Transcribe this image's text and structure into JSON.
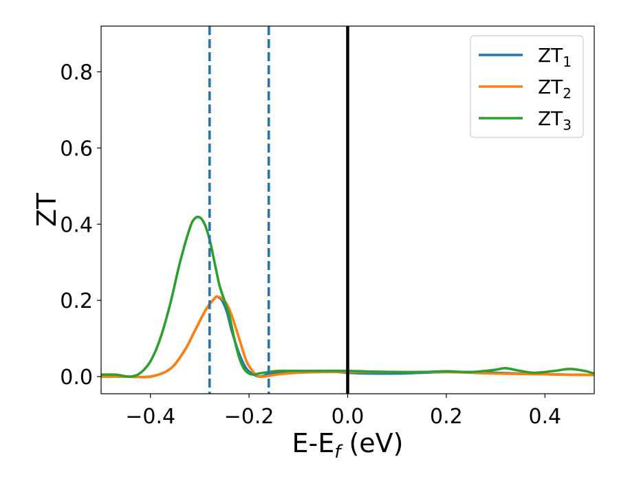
{
  "chart_data": {
    "type": "line",
    "title": "",
    "xlabel": "E-E",
    "xlabel_sub": "f",
    "xlabel_unit": " (eV)",
    "ylabel": "ZT",
    "xlim": [
      -0.5,
      0.5
    ],
    "ylim": [
      -0.045,
      0.92
    ],
    "xticks": [
      -0.4,
      -0.2,
      0.0,
      0.2,
      0.4
    ],
    "xtick_labels": [
      "−0.4",
      "−0.2",
      "0.0",
      "0.2",
      "0.4"
    ],
    "yticks": [
      0.0,
      0.2,
      0.4,
      0.6,
      0.8
    ],
    "ytick_labels": [
      "0.0",
      "0.2",
      "0.4",
      "0.6",
      "0.8"
    ],
    "grid": false,
    "legend_position": "top-right",
    "vertical_lines": [
      {
        "x": -0.28,
        "style": "dashed",
        "color": "#1f77b4"
      },
      {
        "x": -0.16,
        "style": "dashed",
        "color": "#1f77b4"
      },
      {
        "x": 0.0,
        "style": "solid",
        "color": "#000000"
      }
    ],
    "series": [
      {
        "name": "ZT",
        "name_sub": "1",
        "color": "#1f77b4",
        "x": [
          -0.5,
          -0.45,
          -0.4,
          -0.36,
          -0.33,
          -0.31,
          -0.29,
          -0.28,
          -0.27,
          -0.265,
          -0.255,
          -0.245,
          -0.235,
          -0.22,
          -0.205,
          -0.19,
          -0.18,
          -0.17,
          -0.16,
          -0.14,
          -0.1,
          -0.05,
          0.0,
          0.05,
          0.1,
          0.15,
          0.2,
          0.25,
          0.3,
          0.35,
          0.4,
          0.45,
          0.5
        ],
        "y": [
          0.0,
          0.0,
          0.0,
          0.02,
          0.07,
          0.12,
          0.17,
          0.19,
          0.205,
          0.21,
          0.2,
          0.17,
          0.12,
          0.06,
          0.02,
          0.005,
          0.0,
          0.002,
          0.008,
          0.012,
          0.012,
          0.015,
          0.01,
          0.008,
          0.008,
          0.01,
          0.012,
          0.012,
          0.01,
          0.008,
          0.006,
          0.005,
          0.004
        ]
      },
      {
        "name": "ZT",
        "name_sub": "2",
        "color": "#ff7f0e",
        "x": [
          -0.5,
          -0.45,
          -0.4,
          -0.36,
          -0.33,
          -0.31,
          -0.29,
          -0.28,
          -0.27,
          -0.265,
          -0.255,
          -0.245,
          -0.235,
          -0.22,
          -0.205,
          -0.19,
          -0.18,
          -0.17,
          -0.16,
          -0.14,
          -0.1,
          -0.05,
          0.0,
          0.05,
          0.1,
          0.15,
          0.2,
          0.25,
          0.3,
          0.35,
          0.4,
          0.45,
          0.5
        ],
        "y": [
          0.0,
          0.0,
          0.0,
          0.02,
          0.07,
          0.12,
          0.17,
          0.19,
          0.205,
          0.21,
          0.205,
          0.19,
          0.16,
          0.1,
          0.04,
          0.01,
          0.0,
          0.0,
          0.002,
          0.006,
          0.01,
          0.012,
          0.012,
          0.012,
          0.012,
          0.012,
          0.012,
          0.01,
          0.008,
          0.007,
          0.006,
          0.005,
          0.004
        ]
      },
      {
        "name": "ZT",
        "name_sub": "3",
        "color": "#2ca02c",
        "x": [
          -0.5,
          -0.47,
          -0.44,
          -0.42,
          -0.4,
          -0.38,
          -0.36,
          -0.34,
          -0.32,
          -0.31,
          -0.3,
          -0.29,
          -0.28,
          -0.27,
          -0.26,
          -0.25,
          -0.24,
          -0.23,
          -0.22,
          -0.21,
          -0.2,
          -0.19,
          -0.18,
          -0.16,
          -0.14,
          -0.1,
          -0.05,
          0.0,
          0.05,
          0.1,
          0.15,
          0.2,
          0.25,
          0.3,
          0.32,
          0.35,
          0.38,
          0.42,
          0.45,
          0.48,
          0.5
        ],
        "y": [
          0.005,
          0.005,
          0.0,
          0.01,
          0.04,
          0.1,
          0.19,
          0.3,
          0.39,
          0.415,
          0.418,
          0.4,
          0.36,
          0.3,
          0.24,
          0.2,
          0.16,
          0.1,
          0.05,
          0.02,
          0.008,
          0.005,
          0.008,
          0.012,
          0.015,
          0.015,
          0.015,
          0.015,
          0.013,
          0.012,
          0.012,
          0.014,
          0.012,
          0.018,
          0.022,
          0.015,
          0.01,
          0.015,
          0.02,
          0.015,
          0.008
        ]
      }
    ]
  }
}
